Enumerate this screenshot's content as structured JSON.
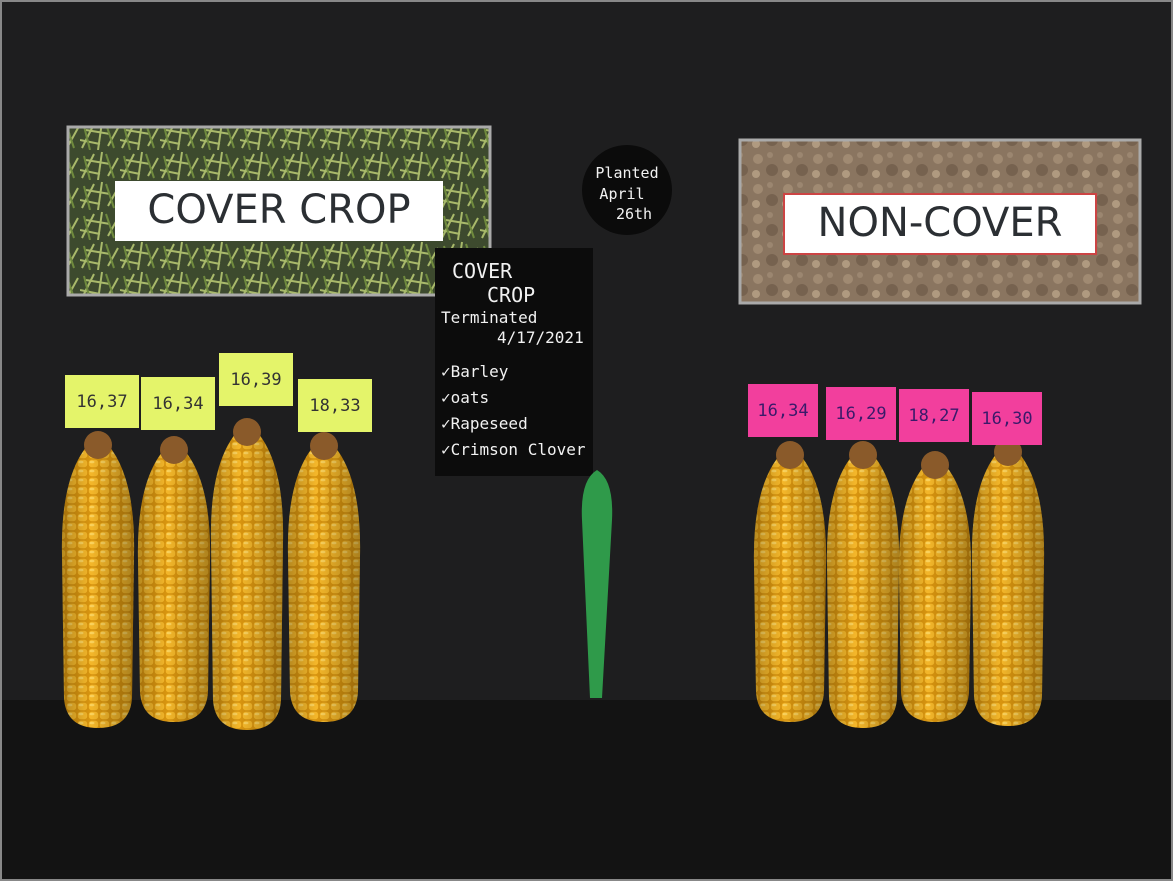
{
  "signs": {
    "left": "COVER CROP",
    "right": "NON-COVER"
  },
  "planted": [
    "Planted",
    "April",
    "26th"
  ],
  "chalkboard": {
    "title": [
      "COVER",
      "CROP"
    ],
    "terminated": "Terminated",
    "date": "4/17/2021",
    "items": [
      "✓Barley",
      "✓oats",
      "✓Rapeseed",
      "✓Crimson Clover"
    ]
  },
  "labels": {
    "cover": [
      "16,37",
      "16,34",
      "16,39",
      "18,33"
    ],
    "non_cover": [
      "16,34",
      "16,29",
      "18,27",
      "16,30"
    ]
  }
}
